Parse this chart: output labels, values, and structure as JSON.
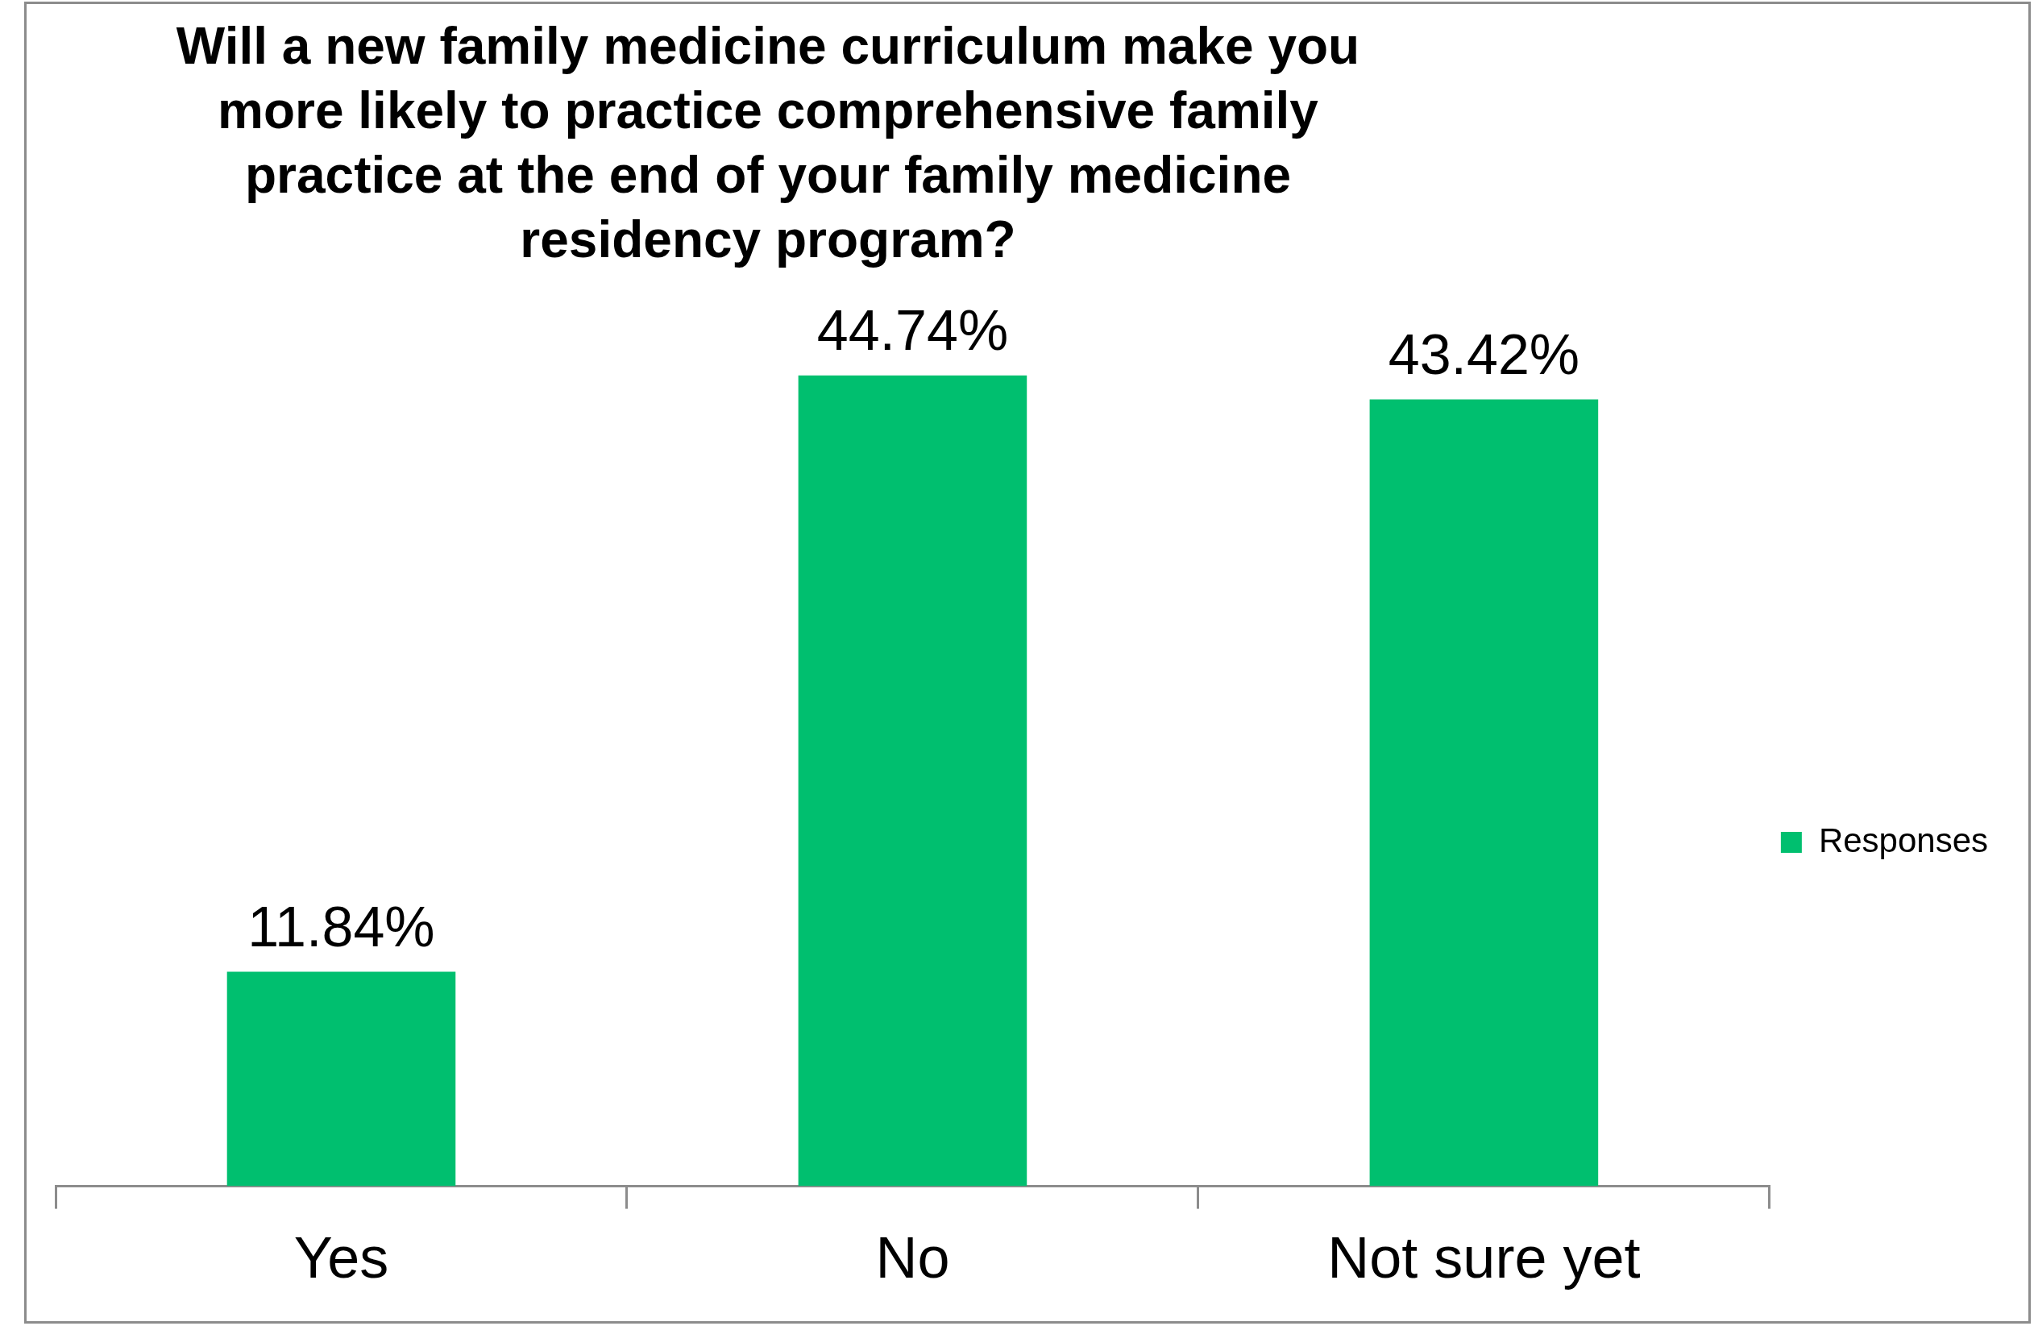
{
  "chart_data": {
    "type": "bar",
    "title": "Will a new family medicine curriculum make you more likely to practice comprehensive family practice at the end of your family medicine residency program?",
    "categories": [
      "Yes",
      "No",
      "Not sure yet"
    ],
    "series": [
      {
        "name": "Responses",
        "color": "#00bf6f",
        "values": [
          11.84,
          44.74,
          43.42
        ],
        "value_labels": [
          "11.84%",
          "44.74%",
          "43.42%"
        ]
      }
    ],
    "legend": "right",
    "tick_labels": "x"
  }
}
